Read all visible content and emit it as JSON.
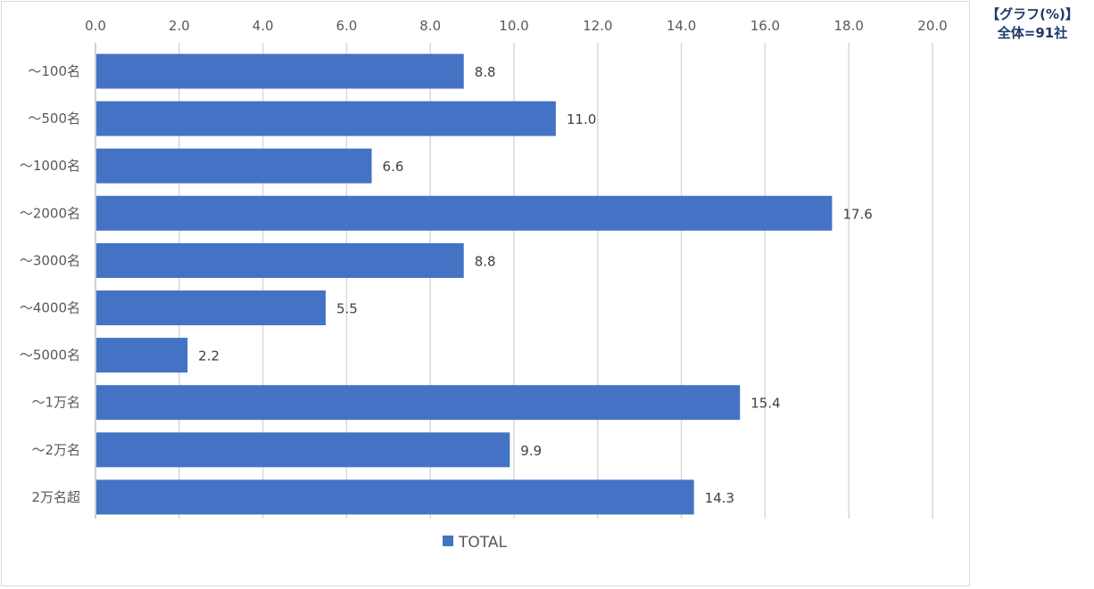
{
  "note": {
    "line1": "【グラフ(%)】",
    "line2": "全体=91社"
  },
  "chart_data": {
    "type": "bar",
    "orientation": "horizontal",
    "categories": [
      "～100名",
      "～500名",
      "～1000名",
      "～2000名",
      "～3000名",
      "～4000名",
      "～5000名",
      "～1万名",
      "～2万名",
      "2万名超"
    ],
    "series": [
      {
        "name": "TOTAL",
        "values": [
          8.8,
          11.0,
          6.6,
          17.6,
          8.8,
          5.5,
          2.2,
          15.4,
          9.9,
          14.3
        ]
      }
    ],
    "xlim": [
      0,
      20
    ],
    "x_ticks": [
      "0.0",
      "2.0",
      "4.0",
      "6.0",
      "8.0",
      "10.0",
      "12.0",
      "14.0",
      "16.0",
      "18.0",
      "20.0"
    ],
    "value_labels": [
      "8.8",
      "11.0",
      "6.6",
      "17.6",
      "8.8",
      "5.5",
      "2.2",
      "15.4",
      "9.9",
      "14.3"
    ],
    "x_axis_position": "top",
    "grid": true,
    "legend_position": "bottom",
    "bar_color": "#4472c4",
    "grid_color": "#d9d9d9"
  }
}
